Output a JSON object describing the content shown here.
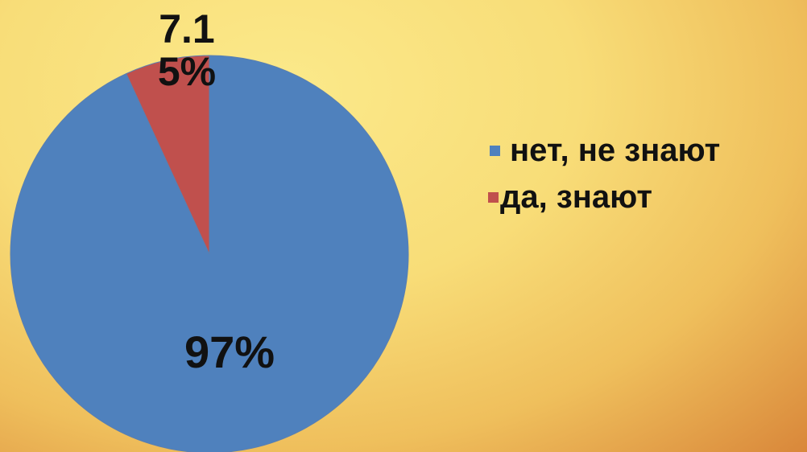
{
  "chart_data": {
    "type": "pie",
    "categories": [
      "нет, не знают",
      "да, знают"
    ],
    "values": [
      97,
      7.15
    ],
    "value_labels": [
      "97%",
      "7.15%"
    ],
    "colors": [
      "#4f81bd",
      "#c0504d"
    ],
    "legend": "right"
  }
}
